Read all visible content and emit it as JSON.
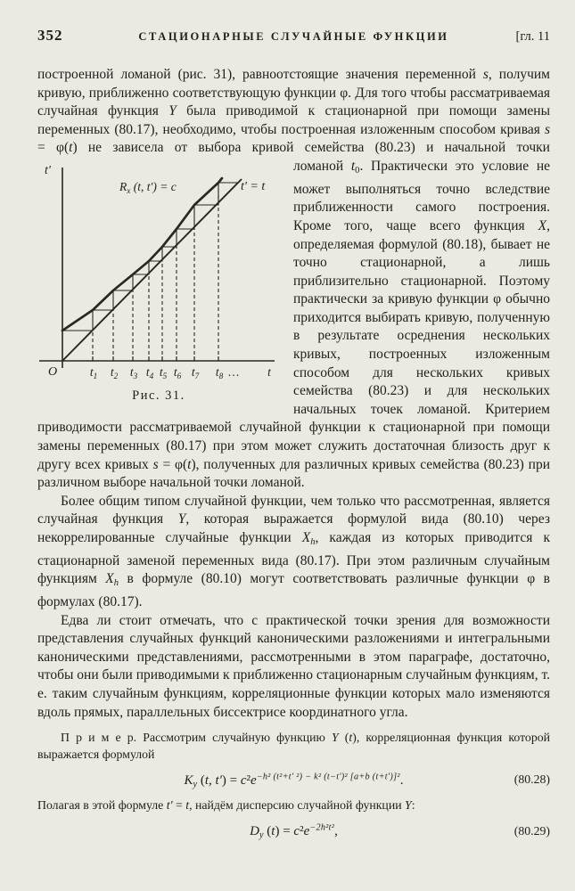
{
  "header": {
    "page_number": "352",
    "running_title": "СТАЦИОНАРНЫЕ СЛУЧАЙНЫЕ ФУНКЦИИ",
    "chapter_ref": "[гл. 11"
  },
  "paragraphs": {
    "p1a": [
      {
        "t": "построенной ломаной (рис. 31), равноотстоящие значения переменной "
      },
      {
        "t": "s",
        "s": "i"
      },
      {
        "t": ", получим кривую, приближенно соответствующую функции φ. Для того чтобы рассматриваемая случайная функция "
      },
      {
        "t": "Y",
        "s": "i"
      },
      {
        "t": " была приводимой к стационарной при помощи замены переменных (80.17), необходимо, чтобы построенная изложенным способом кривая "
      },
      {
        "t": "s",
        "s": "i"
      },
      {
        "t": " = φ("
      },
      {
        "t": "t",
        "s": "i"
      },
      {
        "t": ") не зависела от выбора кривой семейства (80.23) и начальной точки"
      }
    ],
    "p1b": [
      {
        "t": "ломаной "
      },
      {
        "t": "t",
        "s": "i"
      },
      {
        "t": "0",
        "s": "sub"
      },
      {
        "t": ". Практически это условие не может выполняться точно вследствие приближенности самого построения. Кроме того, чаще всего функция "
      },
      {
        "t": "X",
        "s": "i"
      },
      {
        "t": ", определяемая формулой (80.18), бывает не точно стационарной, а лишь приблизительно стационарной. Поэтому практически за кривую функции φ обычно приходится выбирать кривую, полученную в результате осреднения нескольких кривых, построенных изложенным способом для нескольких кривых семейства (80.23) и для нескольких начальных точек ломаной. Критерием приводимости рассматриваемой случайной функции к стационарной при помощи замены переменных (80.17) при этом может служить достаточная близость друг к другу всех кривых "
      },
      {
        "t": "s",
        "s": "i"
      },
      {
        "t": " = φ("
      },
      {
        "t": "t",
        "s": "i"
      },
      {
        "t": "), полученных для различных кривых семейства (80.23) при различном выборе начальной точки ломаной."
      }
    ],
    "p2": [
      {
        "t": "Более общим типом случайной функции, чем только что рассмотренная, является случайная функция "
      },
      {
        "t": "Y",
        "s": "i"
      },
      {
        "t": ", которая выражается формулой вида (80.10) через некоррелированные случайные функции "
      },
      {
        "t": "X",
        "s": "i"
      },
      {
        "t": "h",
        "s": "subi"
      },
      {
        "t": ", каждая из которых приводится к стационарной заменой переменных вида (80.17). При этом различным случайным функциям "
      },
      {
        "t": "X",
        "s": "i"
      },
      {
        "t": "h",
        "s": "subi"
      },
      {
        "t": " в формуле (80.10) могут соответствовать различные функции φ в формулах (80.17)."
      }
    ],
    "p3": [
      {
        "t": "Едва ли стоит отмечать, что с практической точки зрения для возможности представления случайных функций каноническими разложениями и интегральными каноническими представлениями, рассмотренными в этом параграфе, достаточно, чтобы они были приводимыми к приближенно стационарным случайным функциям, т. е. таким случайным функциям, корреляционные функции которых мало изменяются вдоль прямых, параллельных биссектрисе координатного угла."
      }
    ],
    "example_intro": [
      {
        "t": "П р и м е р.  Рассмотрим случайную функцию "
      },
      {
        "t": "Y",
        "s": "i"
      },
      {
        "t": " ("
      },
      {
        "t": "t",
        "s": "i"
      },
      {
        "t": "), корреляционная функция которой выражается формулой"
      }
    ],
    "example_after": [
      {
        "t": "Полагая в этой формуле "
      },
      {
        "t": "t'",
        "s": "i"
      },
      {
        "t": " = "
      },
      {
        "t": "t",
        "s": "i"
      },
      {
        "t": ", найдём дисперсию случайной функции "
      },
      {
        "t": "Y",
        "s": "i"
      },
      {
        "t": ":"
      }
    ]
  },
  "formulas": {
    "f2828": {
      "runs": [
        {
          "t": "K",
          "s": "i"
        },
        {
          "t": "y",
          "s": "subi"
        },
        {
          "t": " ("
        },
        {
          "t": "t, t'",
          "s": "i"
        },
        {
          "t": ") = "
        },
        {
          "t": "c",
          "s": "i"
        },
        {
          "t": "²"
        },
        {
          "t": "e",
          "s": "i"
        },
        {
          "t": "−h² (t²+t' ²) − k² (t−t')² [a+b (t+t')]²",
          "s": "supi"
        },
        {
          "t": "."
        }
      ],
      "number": "(80.28)"
    },
    "f2829": {
      "runs": [
        {
          "t": "D",
          "s": "i"
        },
        {
          "t": "y",
          "s": "subi"
        },
        {
          "t": " ("
        },
        {
          "t": "t",
          "s": "i"
        },
        {
          "t": ") = "
        },
        {
          "t": "c",
          "s": "i"
        },
        {
          "t": "²"
        },
        {
          "t": "e",
          "s": "i"
        },
        {
          "t": "−2h²t²",
          "s": "supi"
        },
        {
          "t": ","
        }
      ],
      "number": "(80.29)"
    }
  },
  "figure": {
    "caption": "Рис. 31.",
    "y_axis_label": "t'",
    "x_axis_label": "t",
    "origin_label": "O",
    "curve_label": [
      {
        "t": "R",
        "s": "i"
      },
      {
        "t": "x",
        "s": "subi"
      },
      {
        "t": " (t, t') = c",
        "s": "i"
      }
    ],
    "line_label": [
      {
        "t": "t' = t",
        "s": "i"
      }
    ],
    "ticks": [
      {
        "base": "t",
        "sub": "1"
      },
      {
        "base": "t",
        "sub": "2"
      },
      {
        "base": "t",
        "sub": "3"
      },
      {
        "base": "t",
        "sub": "4"
      },
      {
        "base": "t",
        "sub": "5"
      },
      {
        "base": "t",
        "sub": "6"
      },
      {
        "base": "t",
        "sub": "7"
      },
      {
        "base": "t",
        "sub": "8"
      }
    ],
    "ellipsis": "…"
  }
}
